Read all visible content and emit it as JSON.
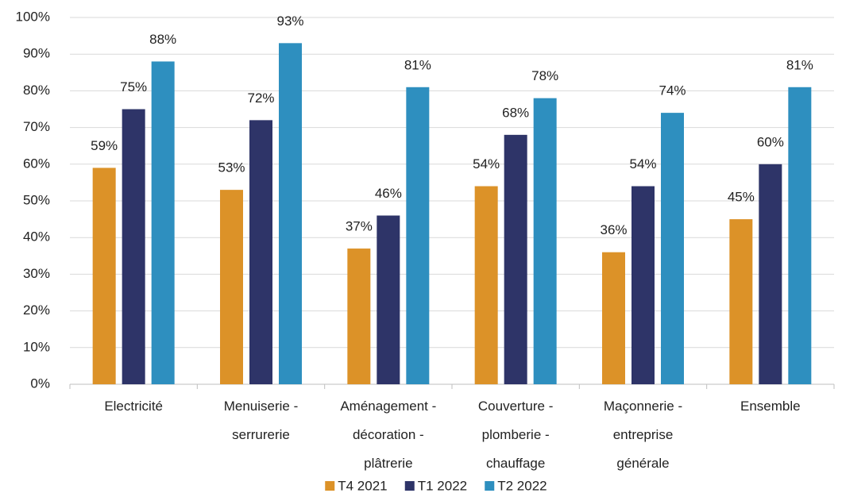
{
  "chart_data": {
    "type": "bar",
    "categories": [
      "Electricité",
      "Menuiserie - serrurerie",
      "Aménagement - décoration - plâtrerie",
      "Couverture - plomberie - chauffage",
      "Maçonnerie - entreprise générale",
      "Ensemble"
    ],
    "series": [
      {
        "name": "T4 2021",
        "color": "#dc9228",
        "values": [
          59,
          53,
          37,
          54,
          36,
          45
        ],
        "value_labels": [
          "59%",
          "53%",
          "37%",
          "54%",
          "36%",
          "45%"
        ]
      },
      {
        "name": "T1 2022",
        "color": "#2e3468",
        "values": [
          75,
          72,
          46,
          68,
          54,
          60
        ],
        "value_labels": [
          "75%",
          "72%",
          "46%",
          "68%",
          "54%",
          "60%"
        ]
      },
      {
        "name": "T2 2022",
        "color": "#2e8fbf",
        "values": [
          88,
          93,
          81,
          78,
          74,
          81
        ],
        "value_labels": [
          "88%",
          "93%",
          "81%",
          "78%",
          "74%",
          "81%"
        ]
      }
    ],
    "ylim": [
      0,
      100
    ],
    "yticks": [
      {
        "value": 0,
        "label": "0%"
      },
      {
        "value": 10,
        "label": "10%"
      },
      {
        "value": 20,
        "label": "20%"
      },
      {
        "value": 30,
        "label": "30%"
      },
      {
        "value": 40,
        "label": "40%"
      },
      {
        "value": 50,
        "label": "50%"
      },
      {
        "value": 60,
        "label": "60%"
      },
      {
        "value": 70,
        "label": "70%"
      },
      {
        "value": 80,
        "label": "80%"
      },
      {
        "value": 90,
        "label": "90%"
      },
      {
        "value": 100,
        "label": "100%"
      }
    ],
    "grid": true,
    "legend": "bottom"
  }
}
